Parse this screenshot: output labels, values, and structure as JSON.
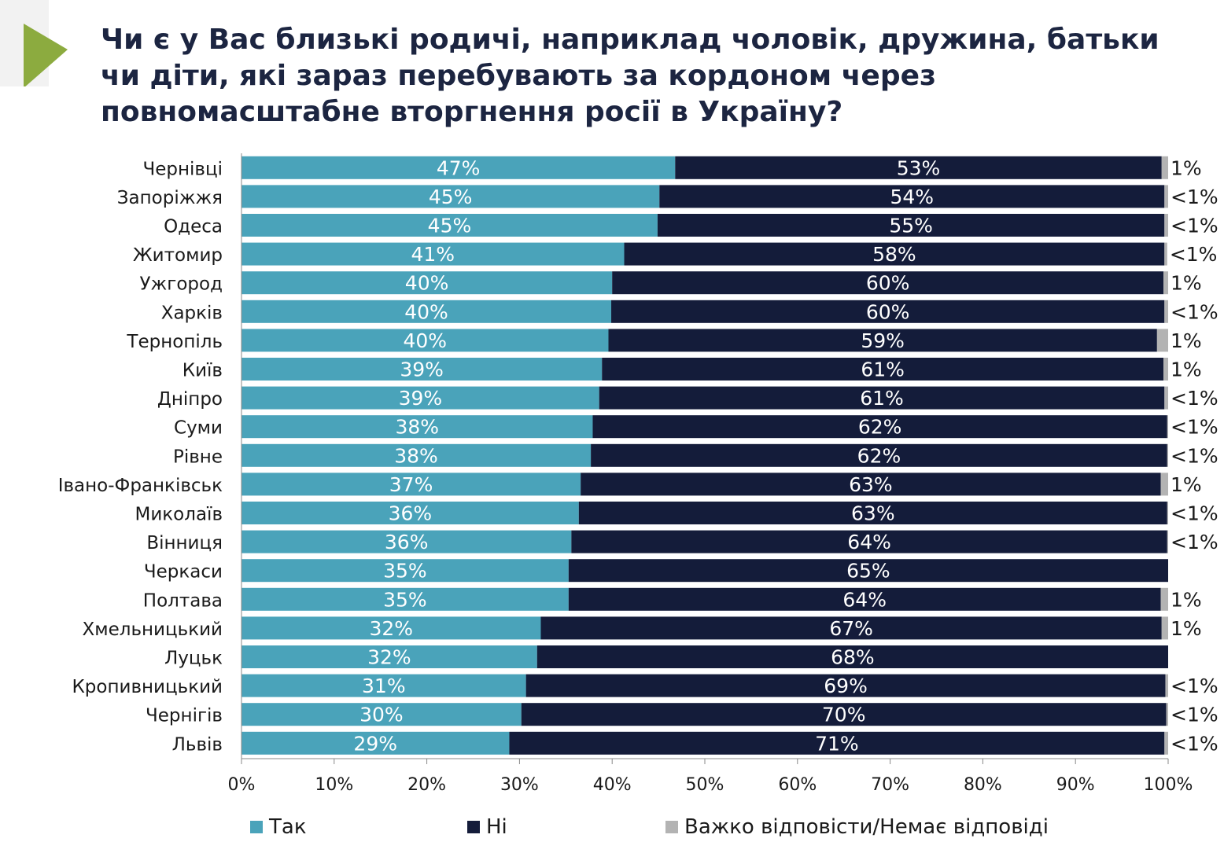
{
  "title": "Чи є у Вас близькі родичі, наприклад чоловік, дружина, батьки чи діти, які зараз перебувають за кордоном через повномасштабне вторгнення росії в Україну?",
  "colors": {
    "yes": "#4aa3ba",
    "no": "#141c3a",
    "hard": "#b3b3b3",
    "accent": "#8cab3f"
  },
  "chart_data": {
    "type": "bar",
    "orientation": "horizontal",
    "stacked": true,
    "categories": [
      "Чернівці",
      "Запоріжжя",
      "Одеса",
      "Житомир",
      "Ужгород",
      "Харків",
      "Тернопіль",
      "Київ",
      "Дніпро",
      "Суми",
      "Рівне",
      "Івано-Франківськ",
      "Миколаїв",
      "Вінниця",
      "Черкаси",
      "Полтава",
      "Хмельницький",
      "Луцьк",
      "Кропивницький",
      "Чернігів",
      "Львів"
    ],
    "series": [
      {
        "name": "Так",
        "values": [
          46.8,
          45.1,
          44.9,
          41.3,
          40.0,
          39.9,
          39.6,
          38.9,
          38.6,
          37.9,
          37.7,
          36.6,
          36.4,
          35.6,
          35.3,
          35.3,
          32.3,
          31.9,
          30.7,
          30.2,
          28.9
        ],
        "labels": [
          "47%",
          "45%",
          "45%",
          "41%",
          "40%",
          "40%",
          "40%",
          "39%",
          "39%",
          "38%",
          "38%",
          "37%",
          "36%",
          "36%",
          "35%",
          "35%",
          "32%",
          "32%",
          "31%",
          "30%",
          "29%"
        ]
      },
      {
        "name": "Ні",
        "values": [
          52.5,
          54.5,
          54.7,
          58.3,
          59.5,
          59.7,
          59.2,
          60.6,
          61.0,
          62.0,
          62.2,
          62.6,
          63.5,
          64.3,
          64.7,
          63.9,
          67.0,
          68.1,
          69.0,
          69.6,
          70.7
        ],
        "labels": [
          "53%",
          "54%",
          "55%",
          "58%",
          "60%",
          "60%",
          "59%",
          "61%",
          "61%",
          "62%",
          "62%",
          "63%",
          "63%",
          "64%",
          "65%",
          "64%",
          "67%",
          "68%",
          "69%",
          "70%",
          "71%"
        ]
      },
      {
        "name": "Важко відповісти/Немає відповіді",
        "values": [
          0.7,
          0.4,
          0.4,
          0.3,
          0.5,
          0.4,
          1.2,
          0.5,
          0.4,
          0.1,
          0.1,
          0.8,
          0.1,
          0.1,
          0.0,
          0.8,
          0.7,
          0.0,
          0.3,
          0.2,
          0.4
        ],
        "labels": [
          "1%",
          "<1%",
          "<1%",
          "<1%",
          "1%",
          "<1%",
          "1%",
          "1%",
          "<1%",
          "<1%",
          "<1%",
          "1%",
          "<1%",
          "<1%",
          "",
          "1%",
          "1%",
          "",
          "<1%",
          "<1%",
          "<1%"
        ]
      }
    ],
    "xlim": [
      0,
      100
    ],
    "xticks": [
      "0%",
      "10%",
      "20%",
      "30%",
      "40%",
      "50%",
      "60%",
      "70%",
      "80%",
      "90%",
      "100%"
    ],
    "legend_position": "bottom"
  }
}
